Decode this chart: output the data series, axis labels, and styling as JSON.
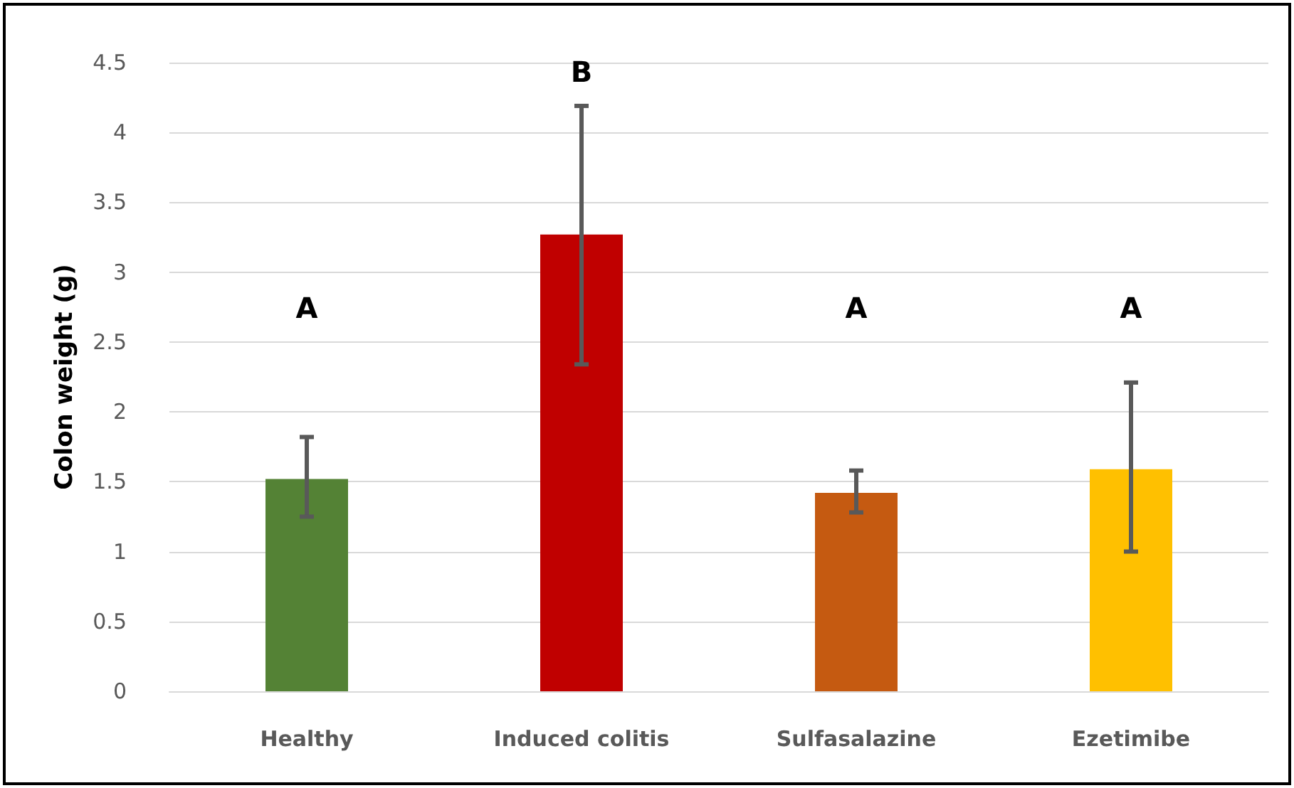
{
  "chart_data": {
    "type": "bar",
    "ylabel": "Colon weight (g)",
    "categories": [
      "Healthy",
      "Induced colitis",
      "Sulfasalazine",
      "Ezetimibe"
    ],
    "values": [
      1.52,
      3.27,
      1.42,
      1.59
    ],
    "colors": [
      "#548235",
      "#c00000",
      "#c55a11",
      "#ffc000"
    ],
    "errors": [
      [
        1.25,
        1.82
      ],
      [
        2.34,
        4.19
      ],
      [
        1.28,
        1.58
      ],
      [
        1.0,
        2.21
      ]
    ],
    "ylim": [
      0,
      4.5
    ],
    "yticks": [
      0,
      0.5,
      1,
      1.5,
      2,
      2.5,
      3,
      3.5,
      4,
      4.5
    ],
    "grid": "y",
    "annotations": [
      "A",
      "B",
      "A",
      "A"
    ]
  }
}
